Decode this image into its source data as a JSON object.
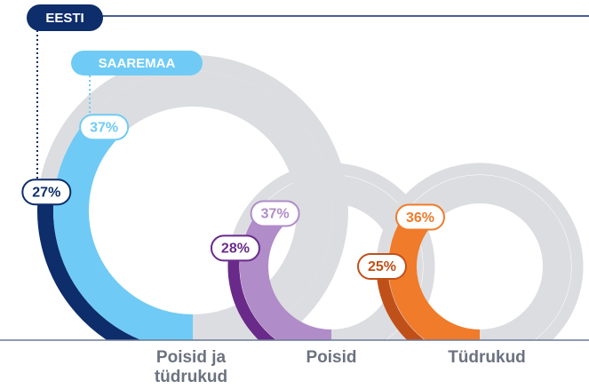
{
  "chart_data": {
    "type": "gauge",
    "categories": [
      "Poisid ja tüdrukud",
      "Poisid",
      "Tüdrukud"
    ],
    "series": [
      {
        "name": "EESTI",
        "colors": [
          "#0d2d6b",
          "#6a2a8a",
          "#c0501a"
        ],
        "values": [
          27,
          28,
          25
        ],
        "value_labels": [
          "27%",
          "28%",
          "25%"
        ]
      },
      {
        "name": "SAAREMAA",
        "colors": [
          "#6fcbf5",
          "#b08cc8",
          "#f07b2a"
        ],
        "values": [
          37,
          37,
          36
        ],
        "value_labels": [
          "37%",
          "37%",
          "36%"
        ]
      }
    ]
  }
}
